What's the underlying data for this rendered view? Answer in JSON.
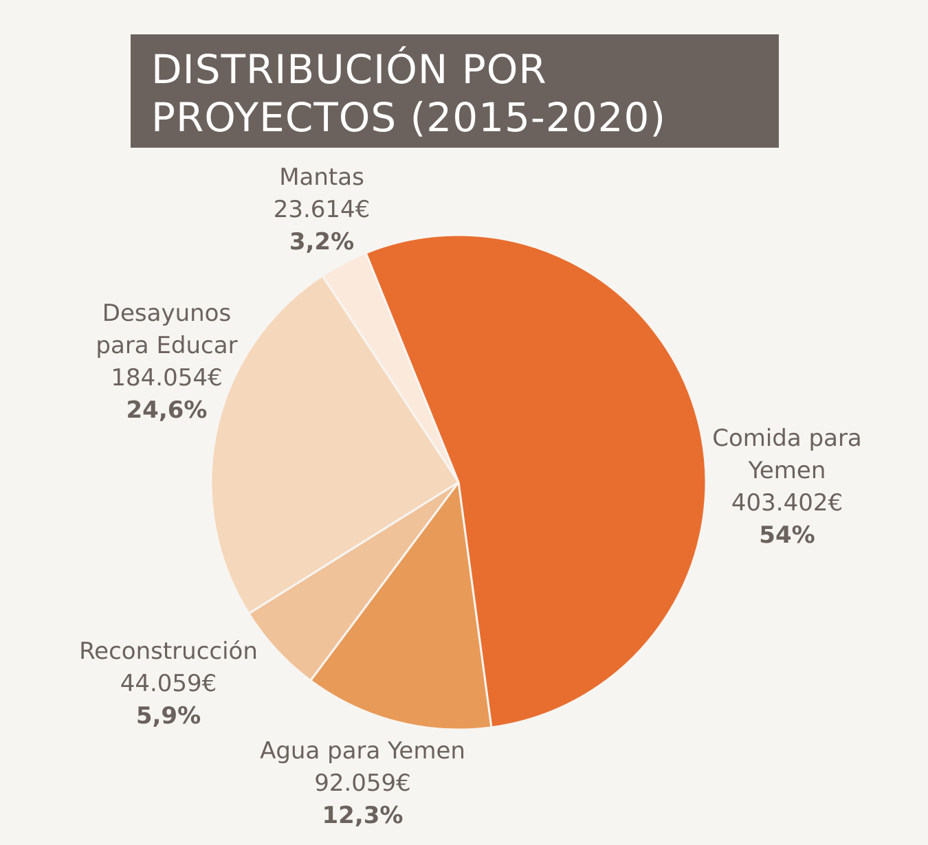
{
  "title": {
    "line1": "DISTRIBUCIÓN POR",
    "line2": "PROYECTOS (2015-2020)"
  },
  "chart_data": {
    "type": "pie",
    "title": "DISTRIBUCIÓN POR PROYECTOS (2015-2020)",
    "slices": [
      {
        "name": "Comida para Yemen",
        "name_lines": [
          "Comida para",
          "Yemen"
        ],
        "amount": "403.402€",
        "value": 403402,
        "percent": "54%",
        "percent_value": 54.0,
        "color": "#e86e30"
      },
      {
        "name": "Agua para Yemen",
        "name_lines": [
          "Agua para Yemen"
        ],
        "amount": "92.059€",
        "value": 92059,
        "percent": "12,3%",
        "percent_value": 12.3,
        "color": "#e89a58"
      },
      {
        "name": "Reconstrucción",
        "name_lines": [
          "Reconstrucción"
        ],
        "amount": "44.059€",
        "value": 44059,
        "percent": "5,9%",
        "percent_value": 5.9,
        "color": "#f0c29a"
      },
      {
        "name": "Desayunos para Educar",
        "name_lines": [
          "Desayunos",
          "para Educar"
        ],
        "amount": "184.054€",
        "value": 184054,
        "percent": "24,6%",
        "percent_value": 24.6,
        "color": "#f5d7bb"
      },
      {
        "name": "Mantas",
        "name_lines": [
          "Mantas"
        ],
        "amount": "23.614€",
        "value": 23614,
        "percent": "3,2%",
        "percent_value": 3.2,
        "color": "#fbe9dc"
      }
    ]
  }
}
